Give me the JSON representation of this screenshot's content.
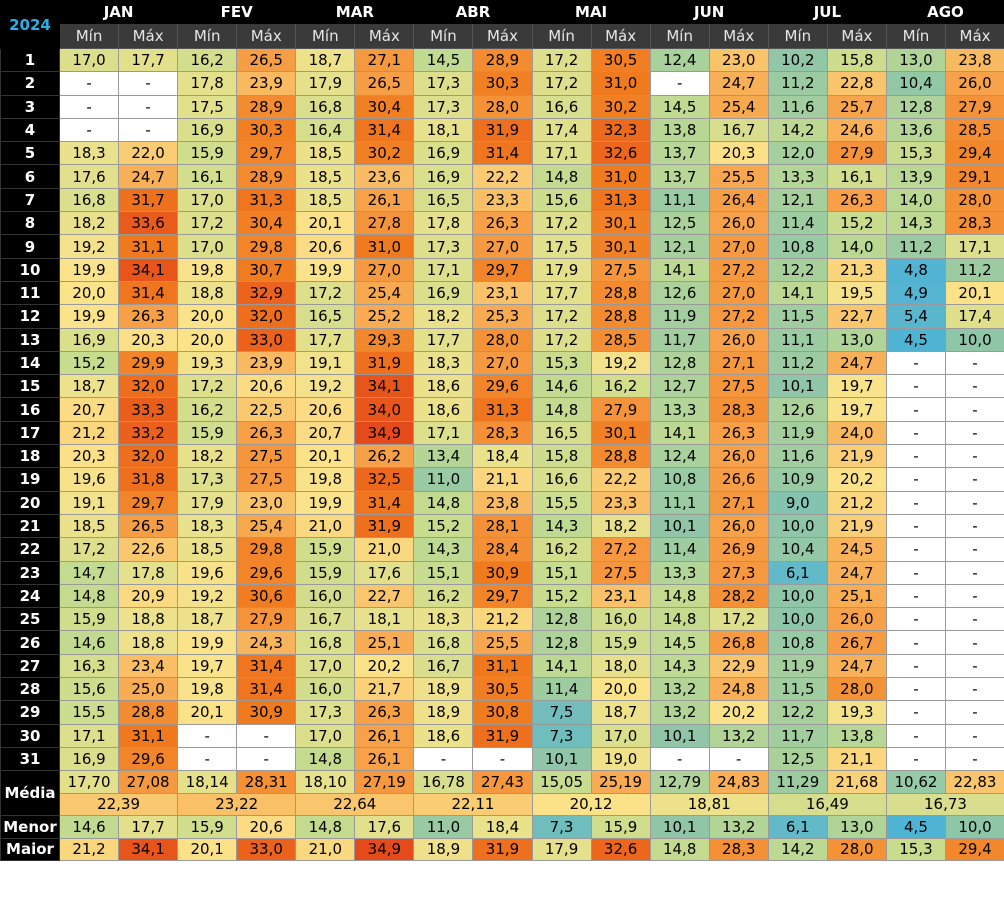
{
  "year": "2024",
  "header": {
    "months": [
      "JAN",
      "FEV",
      "MAR",
      "ABR",
      "MAI",
      "JUN",
      "JUL",
      "AGO"
    ],
    "min_label": "Mín",
    "max_label": "Máx"
  },
  "days": [
    [
      [
        "17,0",
        "17,7"
      ],
      [
        "16,2",
        "26,5"
      ],
      [
        "18,7",
        "27,1"
      ],
      [
        "14,5",
        "28,9"
      ],
      [
        "17,2",
        "30,5"
      ],
      [
        "12,4",
        "23,0"
      ],
      [
        "10,2",
        "15,8"
      ],
      [
        "13,0",
        "23,8"
      ]
    ],
    [
      [
        "-",
        "-"
      ],
      [
        "17,8",
        "23,9"
      ],
      [
        "17,9",
        "26,5"
      ],
      [
        "17,3",
        "30,3"
      ],
      [
        "17,2",
        "31,0"
      ],
      [
        "-",
        "24,7"
      ],
      [
        "11,2",
        "22,8"
      ],
      [
        "10,4",
        "26,0"
      ]
    ],
    [
      [
        "-",
        "-"
      ],
      [
        "17,5",
        "28,9"
      ],
      [
        "16,8",
        "30,4"
      ],
      [
        "17,3",
        "28,0"
      ],
      [
        "16,6",
        "30,2"
      ],
      [
        "14,5",
        "25,4"
      ],
      [
        "11,6",
        "25,7"
      ],
      [
        "12,8",
        "27,9"
      ]
    ],
    [
      [
        "-",
        "-"
      ],
      [
        "16,9",
        "30,3"
      ],
      [
        "16,4",
        "31,4"
      ],
      [
        "18,1",
        "31,9"
      ],
      [
        "17,4",
        "32,3"
      ],
      [
        "13,8",
        "16,7"
      ],
      [
        "14,2",
        "24,6"
      ],
      [
        "13,6",
        "28,5"
      ]
    ],
    [
      [
        "18,3",
        "22,0"
      ],
      [
        "15,9",
        "29,7"
      ],
      [
        "18,5",
        "30,2"
      ],
      [
        "16,9",
        "31,4"
      ],
      [
        "17,1",
        "32,6"
      ],
      [
        "13,7",
        "20,3"
      ],
      [
        "12,0",
        "27,9"
      ],
      [
        "15,3",
        "29,4"
      ]
    ],
    [
      [
        "17,6",
        "24,7"
      ],
      [
        "16,1",
        "28,9"
      ],
      [
        "18,5",
        "23,6"
      ],
      [
        "16,9",
        "22,2"
      ],
      [
        "14,8",
        "31,0"
      ],
      [
        "13,7",
        "25,5"
      ],
      [
        "13,3",
        "16,1"
      ],
      [
        "13,9",
        "29,1"
      ]
    ],
    [
      [
        "16,8",
        "31,7"
      ],
      [
        "17,0",
        "31,3"
      ],
      [
        "18,5",
        "26,1"
      ],
      [
        "16,5",
        "23,3"
      ],
      [
        "15,6",
        "31,3"
      ],
      [
        "11,1",
        "26,4"
      ],
      [
        "12,1",
        "26,3"
      ],
      [
        "14,0",
        "28,0"
      ]
    ],
    [
      [
        "18,2",
        "33,6"
      ],
      [
        "17,2",
        "30,4"
      ],
      [
        "20,1",
        "27,8"
      ],
      [
        "17,8",
        "26,3"
      ],
      [
        "17,2",
        "30,1"
      ],
      [
        "12,5",
        "26,0"
      ],
      [
        "11,4",
        "15,2"
      ],
      [
        "14,3",
        "28,3"
      ]
    ],
    [
      [
        "19,2",
        "31,1"
      ],
      [
        "17,0",
        "29,8"
      ],
      [
        "20,6",
        "31,0"
      ],
      [
        "17,3",
        "27,0"
      ],
      [
        "17,5",
        "30,1"
      ],
      [
        "12,1",
        "27,0"
      ],
      [
        "10,8",
        "14,0"
      ],
      [
        "11,2",
        "17,1"
      ]
    ],
    [
      [
        "19,9",
        "34,1"
      ],
      [
        "19,8",
        "30,7"
      ],
      [
        "19,9",
        "27,0"
      ],
      [
        "17,1",
        "29,7"
      ],
      [
        "17,9",
        "27,5"
      ],
      [
        "14,1",
        "27,2"
      ],
      [
        "12,2",
        "21,3"
      ],
      [
        "4,8",
        "11,2"
      ]
    ],
    [
      [
        "20,0",
        "31,4"
      ],
      [
        "18,8",
        "32,9"
      ],
      [
        "17,2",
        "25,4"
      ],
      [
        "16,9",
        "23,1"
      ],
      [
        "17,7",
        "28,8"
      ],
      [
        "12,6",
        "27,0"
      ],
      [
        "14,1",
        "19,5"
      ],
      [
        "4,9",
        "20,1"
      ]
    ],
    [
      [
        "19,9",
        "26,3"
      ],
      [
        "20,0",
        "32,0"
      ],
      [
        "16,5",
        "25,2"
      ],
      [
        "18,2",
        "25,3"
      ],
      [
        "17,2",
        "28,8"
      ],
      [
        "11,9",
        "27,2"
      ],
      [
        "11,5",
        "22,7"
      ],
      [
        "5,4",
        "17,4"
      ]
    ],
    [
      [
        "16,9",
        "20,3"
      ],
      [
        "20,0",
        "33,0"
      ],
      [
        "17,7",
        "29,3"
      ],
      [
        "17,7",
        "28,0"
      ],
      [
        "17,2",
        "28,5"
      ],
      [
        "11,7",
        "26,0"
      ],
      [
        "11,1",
        "13,0"
      ],
      [
        "4,5",
        "10,0"
      ]
    ],
    [
      [
        "15,2",
        "29,9"
      ],
      [
        "19,3",
        "23,9"
      ],
      [
        "19,1",
        "31,9"
      ],
      [
        "18,3",
        "27,0"
      ],
      [
        "15,3",
        "19,2"
      ],
      [
        "12,8",
        "27,1"
      ],
      [
        "11,2",
        "24,7"
      ],
      [
        "-",
        "-"
      ]
    ],
    [
      [
        "18,7",
        "32,0"
      ],
      [
        "17,2",
        "20,6"
      ],
      [
        "19,2",
        "34,1"
      ],
      [
        "18,6",
        "29,6"
      ],
      [
        "14,6",
        "16,2"
      ],
      [
        "12,7",
        "27,5"
      ],
      [
        "10,1",
        "19,7"
      ],
      [
        "-",
        "-"
      ]
    ],
    [
      [
        "20,7",
        "33,3"
      ],
      [
        "16,2",
        "22,5"
      ],
      [
        "20,6",
        "34,0"
      ],
      [
        "18,6",
        "31,3"
      ],
      [
        "14,8",
        "27,9"
      ],
      [
        "13,3",
        "28,3"
      ],
      [
        "12,6",
        "19,7"
      ],
      [
        "-",
        "-"
      ]
    ],
    [
      [
        "21,2",
        "33,2"
      ],
      [
        "15,9",
        "26,3"
      ],
      [
        "20,7",
        "34,9"
      ],
      [
        "17,1",
        "28,3"
      ],
      [
        "16,5",
        "30,1"
      ],
      [
        "14,1",
        "26,3"
      ],
      [
        "11,9",
        "24,0"
      ],
      [
        "-",
        "-"
      ]
    ],
    [
      [
        "20,3",
        "32,0"
      ],
      [
        "18,2",
        "27,5"
      ],
      [
        "20,1",
        "26,2"
      ],
      [
        "13,4",
        "18,4"
      ],
      [
        "15,8",
        "28,8"
      ],
      [
        "12,4",
        "26,0"
      ],
      [
        "11,6",
        "21,9"
      ],
      [
        "-",
        "-"
      ]
    ],
    [
      [
        "19,6",
        "31,8"
      ],
      [
        "17,3",
        "27,5"
      ],
      [
        "19,8",
        "32,5"
      ],
      [
        "11,0",
        "21,1"
      ],
      [
        "16,6",
        "22,2"
      ],
      [
        "10,8",
        "26,6"
      ],
      [
        "10,9",
        "20,2"
      ],
      [
        "-",
        "-"
      ]
    ],
    [
      [
        "19,1",
        "29,7"
      ],
      [
        "17,9",
        "23,0"
      ],
      [
        "19,9",
        "31,4"
      ],
      [
        "14,8",
        "23,8"
      ],
      [
        "15,5",
        "23,3"
      ],
      [
        "11,1",
        "27,1"
      ],
      [
        "9,0",
        "21,2"
      ],
      [
        "-",
        "-"
      ]
    ],
    [
      [
        "18,5",
        "26,5"
      ],
      [
        "18,3",
        "25,4"
      ],
      [
        "21,0",
        "31,9"
      ],
      [
        "15,2",
        "28,1"
      ],
      [
        "14,3",
        "18,2"
      ],
      [
        "10,1",
        "26,0"
      ],
      [
        "10,0",
        "21,9"
      ],
      [
        "-",
        "-"
      ]
    ],
    [
      [
        "17,2",
        "22,6"
      ],
      [
        "18,5",
        "29,8"
      ],
      [
        "15,9",
        "21,0"
      ],
      [
        "14,3",
        "28,4"
      ],
      [
        "16,2",
        "27,2"
      ],
      [
        "11,4",
        "26,9"
      ],
      [
        "10,4",
        "24,5"
      ],
      [
        "-",
        "-"
      ]
    ],
    [
      [
        "14,7",
        "17,8"
      ],
      [
        "19,6",
        "29,6"
      ],
      [
        "15,9",
        "17,6"
      ],
      [
        "15,1",
        "30,9"
      ],
      [
        "15,1",
        "27,5"
      ],
      [
        "13,3",
        "27,3"
      ],
      [
        "6,1",
        "24,7"
      ],
      [
        "-",
        "-"
      ]
    ],
    [
      [
        "14,8",
        "20,9"
      ],
      [
        "19,2",
        "30,6"
      ],
      [
        "16,0",
        "22,7"
      ],
      [
        "16,2",
        "29,7"
      ],
      [
        "15,2",
        "23,1"
      ],
      [
        "14,8",
        "28,2"
      ],
      [
        "10,0",
        "25,1"
      ],
      [
        "-",
        "-"
      ]
    ],
    [
      [
        "15,9",
        "18,8"
      ],
      [
        "18,7",
        "27,9"
      ],
      [
        "16,7",
        "18,1"
      ],
      [
        "18,3",
        "21,2"
      ],
      [
        "12,8",
        "16,0"
      ],
      [
        "14,8",
        "17,2"
      ],
      [
        "10,0",
        "26,0"
      ],
      [
        "-",
        "-"
      ]
    ],
    [
      [
        "14,6",
        "18,8"
      ],
      [
        "19,9",
        "24,3"
      ],
      [
        "16,8",
        "25,1"
      ],
      [
        "16,8",
        "25,5"
      ],
      [
        "12,8",
        "15,9"
      ],
      [
        "14,5",
        "26,8"
      ],
      [
        "10,8",
        "26,7"
      ],
      [
        "-",
        "-"
      ]
    ],
    [
      [
        "16,3",
        "23,4"
      ],
      [
        "19,7",
        "31,4"
      ],
      [
        "17,0",
        "20,2"
      ],
      [
        "16,7",
        "31,1"
      ],
      [
        "14,1",
        "18,0"
      ],
      [
        "14,3",
        "22,9"
      ],
      [
        "11,9",
        "24,7"
      ],
      [
        "-",
        "-"
      ]
    ],
    [
      [
        "15,6",
        "25,0"
      ],
      [
        "19,8",
        "31,4"
      ],
      [
        "16,0",
        "21,7"
      ],
      [
        "18,9",
        "30,5"
      ],
      [
        "11,4",
        "20,0"
      ],
      [
        "13,2",
        "24,8"
      ],
      [
        "11,5",
        "28,0"
      ],
      [
        "-",
        "-"
      ]
    ],
    [
      [
        "15,5",
        "28,8"
      ],
      [
        "20,1",
        "30,9"
      ],
      [
        "17,3",
        "26,3"
      ],
      [
        "18,9",
        "30,8"
      ],
      [
        "7,5",
        "18,7"
      ],
      [
        "13,2",
        "20,2"
      ],
      [
        "12,2",
        "19,3"
      ],
      [
        "-",
        "-"
      ]
    ],
    [
      [
        "17,1",
        "31,1"
      ],
      [
        "-",
        "-"
      ],
      [
        "17,0",
        "26,1"
      ],
      [
        "18,6",
        "31,9"
      ],
      [
        "7,3",
        "17,0"
      ],
      [
        "10,1",
        "13,2"
      ],
      [
        "11,7",
        "13,8"
      ],
      [
        "-",
        "-"
      ]
    ],
    [
      [
        "16,9",
        "29,6"
      ],
      [
        "-",
        "-"
      ],
      [
        "14,8",
        "26,1"
      ],
      [
        "-",
        "-"
      ],
      [
        "10,1",
        "19,0"
      ],
      [
        "-",
        "-"
      ],
      [
        "12,5",
        "21,1"
      ],
      [
        "-",
        "-"
      ]
    ]
  ],
  "summary": {
    "media_label": "Média",
    "menor_label": "Menor",
    "maior_label": "Maior",
    "media": [
      [
        "17,70",
        "27,08"
      ],
      [
        "18,14",
        "28,31"
      ],
      [
        "18,10",
        "27,19"
      ],
      [
        "16,78",
        "27,43"
      ],
      [
        "15,05",
        "25,19"
      ],
      [
        "12,79",
        "24,83"
      ],
      [
        "11,29",
        "21,68"
      ],
      [
        "10,62",
        "22,83"
      ]
    ],
    "media_total": [
      "22,39",
      "23,22",
      "22,64",
      "22,11",
      "20,12",
      "18,81",
      "16,49",
      "16,73"
    ],
    "menor": [
      [
        "14,6",
        "17,7"
      ],
      [
        "15,9",
        "20,6"
      ],
      [
        "14,8",
        "17,6"
      ],
      [
        "11,0",
        "18,4"
      ],
      [
        "7,3",
        "15,9"
      ],
      [
        "10,1",
        "13,2"
      ],
      [
        "6,1",
        "13,0"
      ],
      [
        "4,5",
        "10,0"
      ]
    ],
    "maior": [
      [
        "21,2",
        "34,1"
      ],
      [
        "20,1",
        "33,0"
      ],
      [
        "21,0",
        "34,9"
      ],
      [
        "18,9",
        "31,9"
      ],
      [
        "17,9",
        "32,6"
      ],
      [
        "14,8",
        "28,3"
      ],
      [
        "14,2",
        "28,0"
      ],
      [
        "15,3",
        "29,4"
      ]
    ]
  },
  "color_scale": {
    "stops": [
      {
        "t": 4.5,
        "color": "#4fb3d4"
      },
      {
        "t": 10.0,
        "color": "#8fc6a8"
      },
      {
        "t": 15.0,
        "color": "#c6dc8e"
      },
      {
        "t": 20.0,
        "color": "#fbe38a"
      },
      {
        "t": 26.0,
        "color": "#f7a24a"
      },
      {
        "t": 31.0,
        "color": "#f07a1e"
      },
      {
        "t": 35.0,
        "color": "#e54a1a"
      }
    ]
  }
}
